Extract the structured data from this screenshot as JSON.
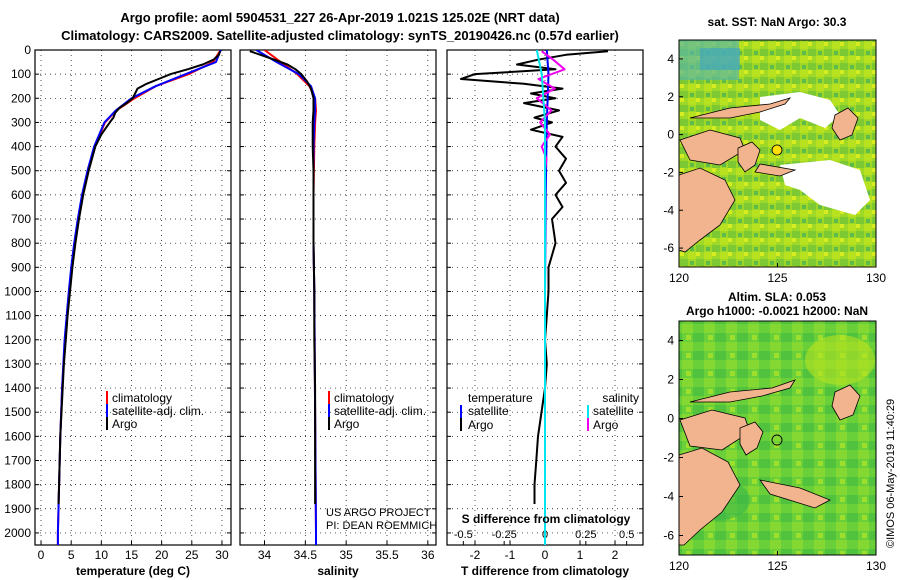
{
  "title": {
    "line1": "Argo profile: aoml 5904531_227 26-Apr-2019 1.021S 125.02E (NRT data)",
    "line2": "Climatology: CARS2009. Satellite-adjusted climatology: synTS_20190426.nc (0.57d earlier)"
  },
  "colors": {
    "climatology": "#ff0000",
    "satellite": "#0000ff",
    "argo": "#000000",
    "sal_satellite": "#00e5ee",
    "sal_argo": "#ee00ee",
    "land": "#f2b48e"
  },
  "legend": {
    "climatology": "climatology",
    "satellite": "satellite-adj. clim.",
    "argo": "Argo"
  },
  "depth_axis": {
    "ticks": [
      "0",
      "100",
      "200",
      "300",
      "400",
      "500",
      "600",
      "700",
      "800",
      "900",
      "1000",
      "1100",
      "1200",
      "1300",
      "1400",
      "1500",
      "1600",
      "1700",
      "1800",
      "1900",
      "2000"
    ]
  },
  "panels": {
    "temperature": {
      "xlabel": "temperature (deg C)",
      "ticks": [
        "0",
        "5",
        "10",
        "15",
        "20",
        "25",
        "30"
      ]
    },
    "salinity": {
      "xlabel": "salinity",
      "ticks": [
        "34",
        "34.5",
        "35",
        "35.5",
        "36"
      ],
      "credit1": "US ARGO PROJECT",
      "credit2": "PI: DEAN ROEMMICH"
    },
    "difference": {
      "xlabel": "T difference from climatology",
      "ticks": [
        "-2",
        "-1",
        "0",
        "1",
        "2"
      ],
      "s_title": "S difference from climatology",
      "s_ticks": [
        "-0.5",
        "-0.25",
        "0",
        "0.25",
        "0.5"
      ],
      "legend_t_title": "temperature",
      "legend_s_title": "salinity",
      "legend_sat": "satellite",
      "legend_argo": "Argo"
    }
  },
  "maps": {
    "sst": {
      "title": "sat. SST: NaN Argo: 30.3",
      "yticks": [
        "4",
        "2",
        "0",
        "-2",
        "-4",
        "-6"
      ],
      "xticks": [
        "120",
        "125",
        "130"
      ]
    },
    "sla": {
      "title1": "Altim. SLA: 0.053",
      "title2": "Argo h1000: -0.0021 h2000: NaN",
      "yticks": [
        "4",
        "2",
        "0",
        "-2",
        "-4",
        "-6"
      ],
      "xticks": [
        "120",
        "125",
        "130"
      ]
    }
  },
  "stamp": "©IMOS 06-May-2019 11:40:29",
  "chart_data": [
    {
      "type": "line",
      "title": "temperature",
      "xlabel": "temperature (deg C)",
      "ylabel": "depth",
      "xlim": [
        -1,
        31.5
      ],
      "ylim": [
        2050,
        0
      ],
      "series": [
        {
          "name": "climatology",
          "depth": [
            0,
            50,
            100,
            150,
            200,
            250,
            300,
            400,
            500,
            600,
            700,
            800,
            900,
            1000,
            1200,
            1400,
            1600,
            1800,
            2000,
            2050
          ],
          "value": [
            29.8,
            28.5,
            24.5,
            19,
            15.5,
            12.5,
            10.6,
            8.9,
            7.8,
            6.9,
            6.2,
            5.6,
            5.1,
            4.7,
            4.0,
            3.5,
            3.2,
            3.0,
            2.8,
            2.8
          ]
        },
        {
          "name": "satellite-adj. clim.",
          "depth": [
            0,
            50,
            100,
            150,
            200,
            250,
            300,
            400,
            500,
            600,
            700,
            800,
            900,
            1000,
            1200,
            1400,
            1600,
            1800,
            2000,
            2050
          ],
          "value": [
            29.8,
            29.0,
            24.0,
            19.0,
            15.0,
            12.4,
            10.5,
            8.8,
            7.7,
            6.8,
            6.1,
            5.5,
            5.0,
            4.6,
            3.9,
            3.5,
            3.2,
            3.0,
            2.8,
            2.8
          ]
        },
        {
          "name": "Argo",
          "depth": [
            5,
            20,
            40,
            60,
            80,
            100,
            120,
            140,
            160,
            180,
            200,
            220,
            240,
            260,
            280,
            300,
            350,
            400,
            500,
            600,
            700,
            800,
            900,
            1000,
            1100,
            1200,
            1300,
            1400,
            1500,
            1600,
            1700,
            1800,
            1880
          ],
          "value": [
            29.7,
            29.5,
            28.6,
            26.8,
            24.3,
            21.5,
            19.5,
            17.5,
            16.0,
            15.6,
            15.2,
            14.2,
            13.0,
            12.3,
            12.0,
            11.4,
            10.0,
            9.0,
            7.9,
            7.0,
            6.3,
            5.7,
            5.2,
            4.8,
            4.4,
            4.1,
            3.8,
            3.6,
            3.4,
            3.2,
            3.1,
            3.0,
            2.9
          ]
        }
      ]
    },
    {
      "type": "line",
      "title": "salinity",
      "xlabel": "salinity",
      "ylabel": "depth",
      "xlim": [
        33.7,
        36.1
      ],
      "ylim": [
        2050,
        0
      ],
      "series": [
        {
          "name": "climatology",
          "depth": [
            0,
            50,
            100,
            150,
            200,
            250,
            300,
            400,
            600,
            800,
            1000,
            1500,
            2000,
            2050
          ],
          "value": [
            34.0,
            34.2,
            34.4,
            34.55,
            34.62,
            34.63,
            34.62,
            34.61,
            34.6,
            34.6,
            34.61,
            34.62,
            34.63,
            34.63
          ]
        },
        {
          "name": "satellite-adj. clim.",
          "depth": [
            0,
            50,
            100,
            150,
            200,
            250,
            300,
            400,
            600,
            800,
            1000,
            1500,
            2000,
            2050
          ],
          "value": [
            33.9,
            34.15,
            34.42,
            34.57,
            34.62,
            34.62,
            34.61,
            34.6,
            34.6,
            34.6,
            34.61,
            34.62,
            34.63,
            34.63
          ]
        },
        {
          "name": "Argo",
          "depth": [
            5,
            20,
            40,
            60,
            80,
            100,
            130,
            160,
            200,
            250,
            300,
            400,
            500,
            600,
            800,
            1000,
            1200,
            1400,
            1600,
            1800,
            1880
          ],
          "value": [
            33.82,
            33.95,
            34.12,
            34.28,
            34.38,
            34.45,
            34.52,
            34.57,
            34.6,
            34.6,
            34.59,
            34.59,
            34.6,
            34.6,
            34.6,
            34.61,
            34.61,
            34.62,
            34.62,
            34.62,
            34.62
          ]
        }
      ]
    },
    {
      "type": "line",
      "title": "T/S difference from climatology",
      "xlabel": "T difference from climatology",
      "ylabel": "depth",
      "xlim": [
        -2.8,
        2.8
      ],
      "ylim": [
        2050,
        0
      ],
      "series": [
        {
          "name": "temperature Argo",
          "depth": [
            5,
            20,
            40,
            60,
            80,
            100,
            120,
            140,
            160,
            180,
            200,
            220,
            250,
            280,
            300,
            330,
            360,
            400,
            450,
            500,
            550,
            600,
            650,
            700,
            800,
            900,
            1000,
            1100,
            1200,
            1300,
            1400,
            1500,
            1600,
            1700,
            1800,
            1880
          ],
          "value": [
            1.8,
            0.6,
            -0.2,
            -0.8,
            0.3,
            -2.0,
            -2.4,
            -0.6,
            0.5,
            -0.4,
            0.3,
            -0.6,
            0.4,
            -0.3,
            0.2,
            -0.4,
            0.5,
            0.3,
            0.6,
            0.4,
            0.6,
            0.3,
            0.5,
            0.2,
            0.3,
            0.1,
            0.1,
            0.05,
            0.0,
            0.05,
            0.0,
            -0.1,
            -0.2,
            -0.25,
            -0.3,
            -0.3
          ]
        },
        {
          "name": "temperature satellite",
          "depth": [
            0,
            100,
            300,
            600,
            1000,
            1500,
            2050
          ],
          "value": [
            0.05,
            0.1,
            0.05,
            0.02,
            0.0,
            0.0,
            0.0
          ]
        },
        {
          "name": "salinity Argo",
          "depth": [
            5,
            40,
            80,
            120,
            160,
            200,
            250,
            300,
            350,
            400,
            450,
            500
          ],
          "value": [
            -0.02,
            0.05,
            0.12,
            -0.04,
            0.06,
            -0.05,
            0.04,
            -0.03,
            0.03,
            -0.02,
            0.01,
            0.0
          ]
        },
        {
          "name": "salinity satellite",
          "depth": [
            0,
            100,
            300,
            600,
            1000,
            1500,
            2050
          ],
          "value": [
            -0.05,
            -0.02,
            0.0,
            0.0,
            0.0,
            0.0,
            0.0
          ]
        }
      ]
    }
  ]
}
